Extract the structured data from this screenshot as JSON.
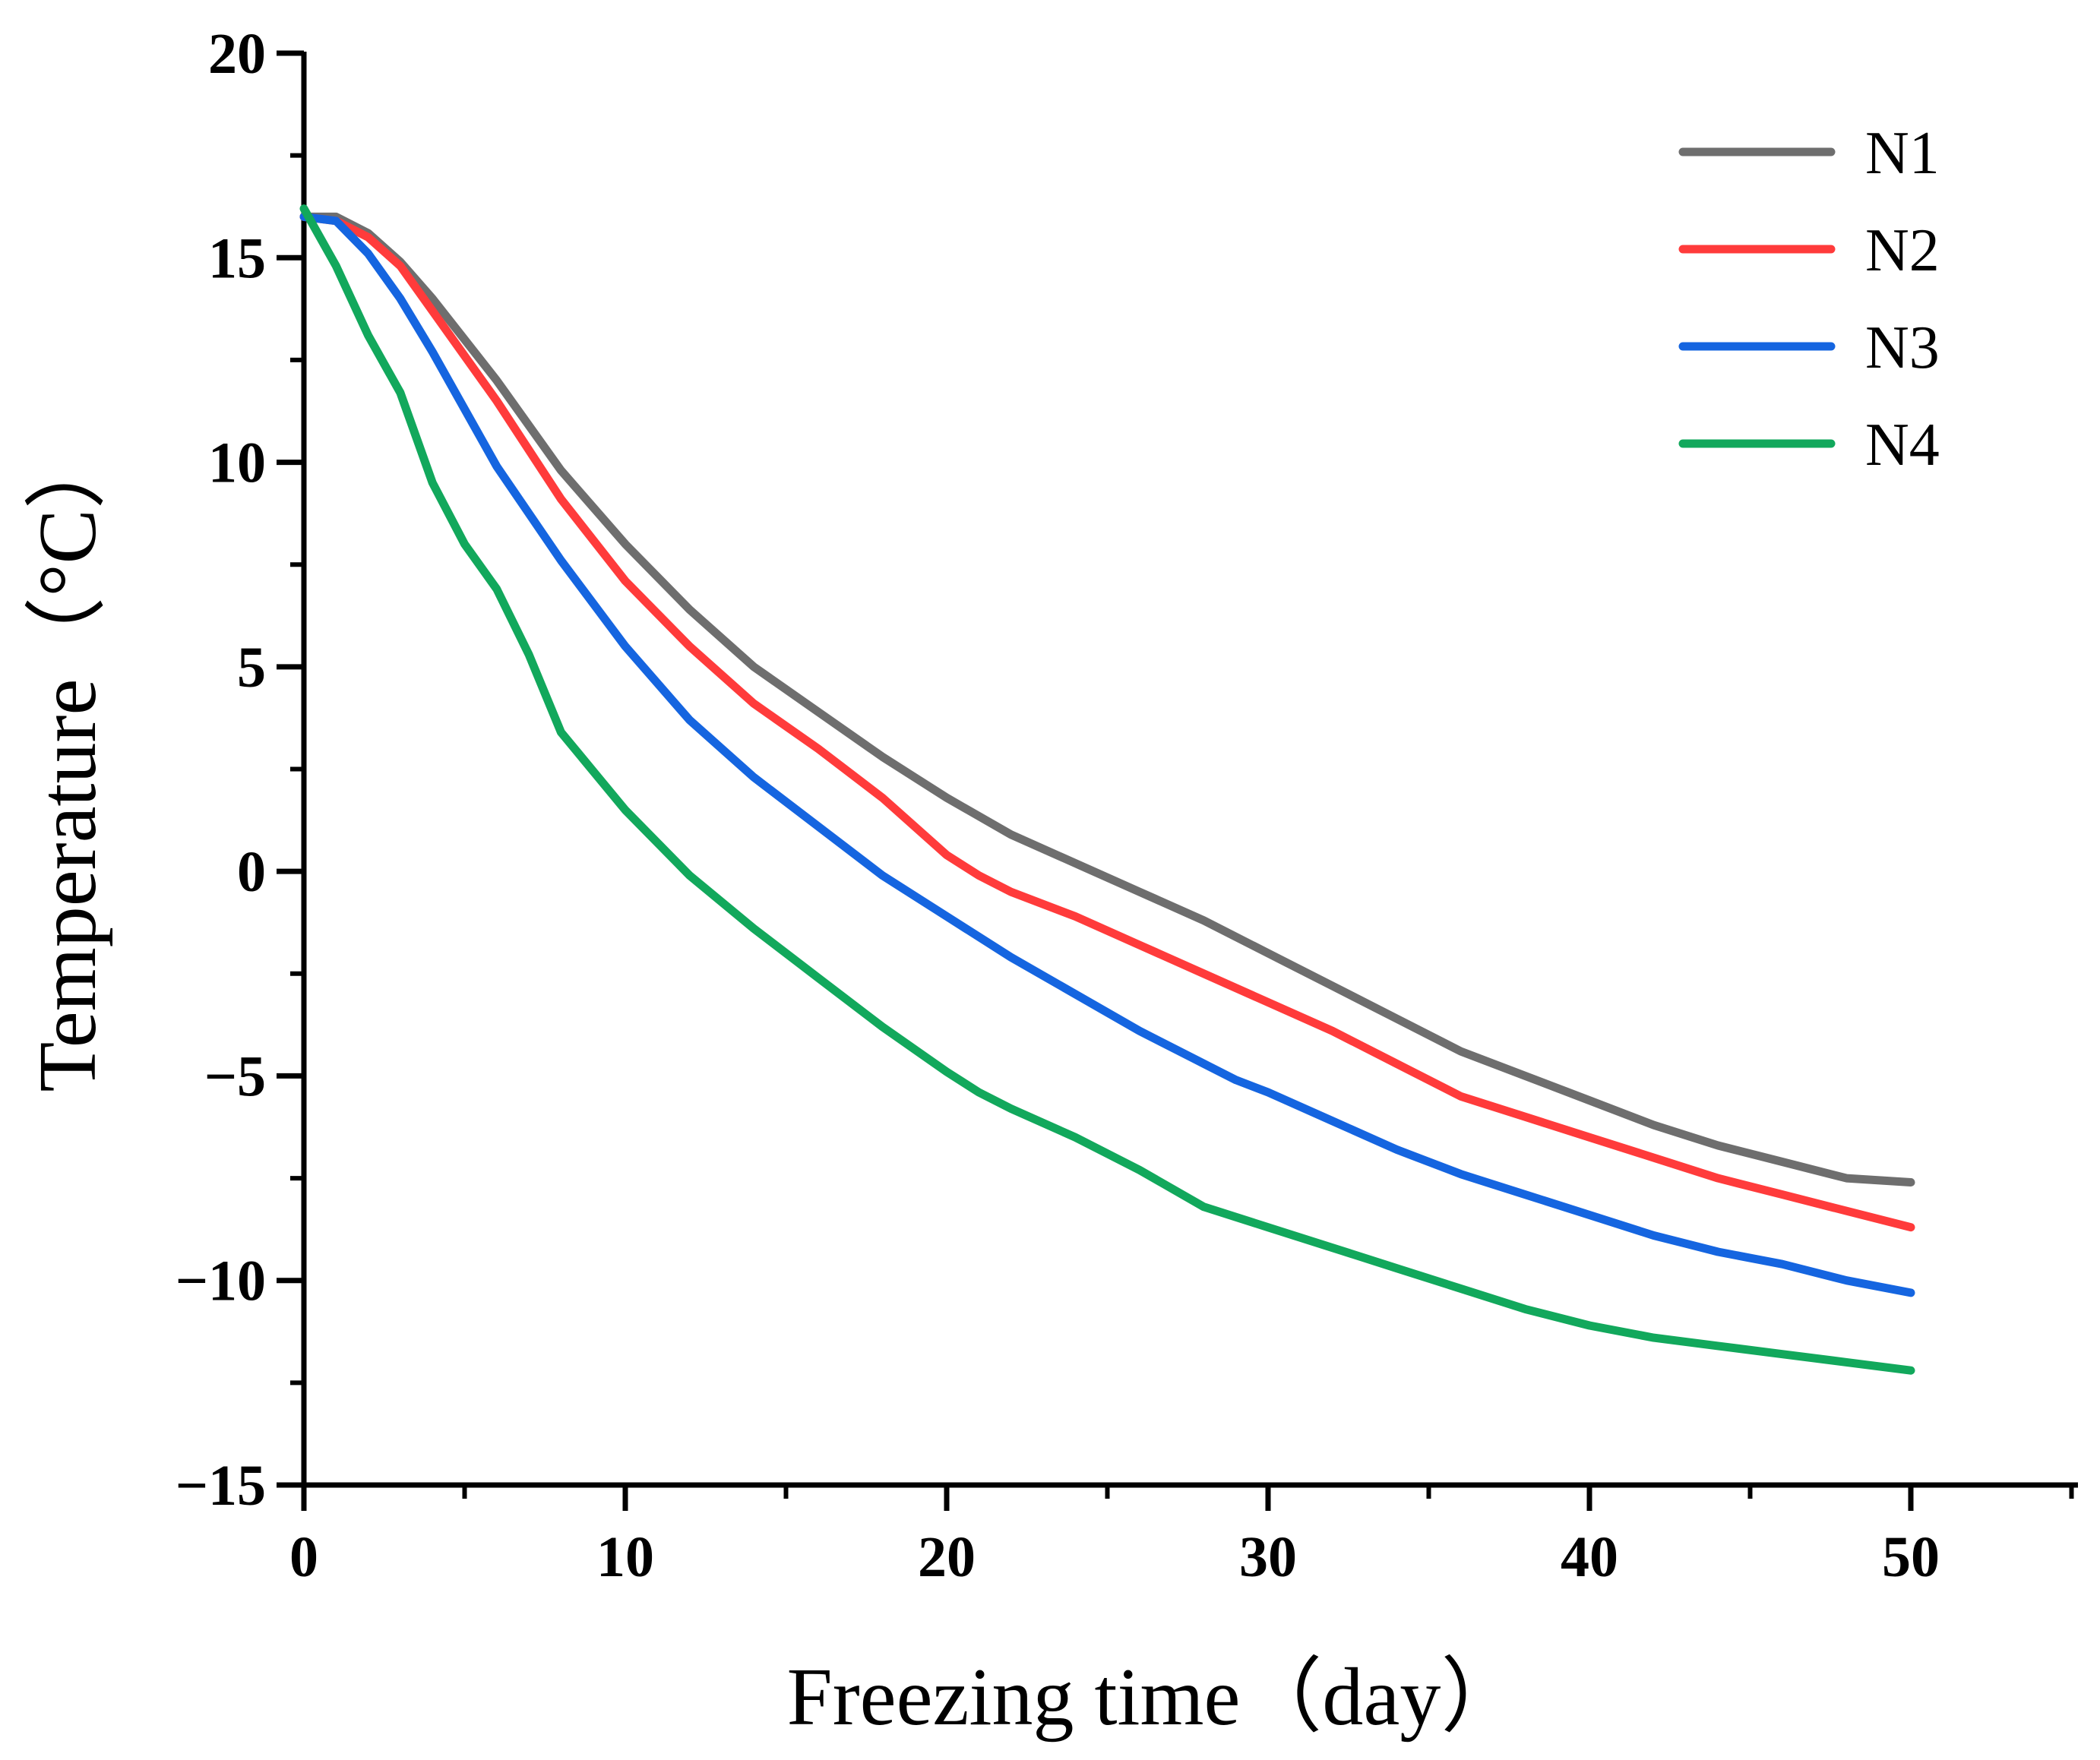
{
  "chart_data": {
    "type": "line",
    "title": "",
    "xlabel": "Freezing time（day）",
    "ylabel": "Temperature（°C）",
    "xlim": [
      0,
      55
    ],
    "ylim": [
      -15,
      20
    ],
    "xticks": [
      0,
      10,
      20,
      30,
      40,
      50
    ],
    "yticks": [
      20,
      15,
      10,
      5,
      0,
      -5,
      -10,
      -15
    ],
    "grid": false,
    "legend_position": "top-right",
    "series": [
      {
        "name": "N1",
        "color": "#6e6e6e",
        "x": [
          0,
          1,
          2,
          3,
          4,
          6,
          8,
          10,
          12,
          14,
          16,
          18,
          20,
          22,
          24,
          26,
          28,
          30,
          32,
          34,
          36,
          38,
          40,
          42,
          44,
          46,
          48,
          50
        ],
        "y": [
          16.0,
          16.0,
          15.6,
          14.9,
          14.0,
          12.0,
          9.8,
          8.0,
          6.4,
          5.0,
          3.9,
          2.8,
          1.8,
          0.9,
          0.2,
          -0.5,
          -1.2,
          -2.0,
          -2.8,
          -3.6,
          -4.4,
          -5.0,
          -5.6,
          -6.2,
          -6.7,
          -7.1,
          -7.5,
          -7.6
        ]
      },
      {
        "name": "N2",
        "color": "#ff3b3b",
        "x": [
          0,
          1,
          2,
          3,
          4,
          6,
          8,
          10,
          12,
          14,
          16,
          18,
          20,
          21,
          22,
          24,
          26,
          28,
          30,
          32,
          34,
          36,
          38,
          40,
          42,
          44,
          46,
          48,
          50
        ],
        "y": [
          16.0,
          15.9,
          15.5,
          14.8,
          13.7,
          11.5,
          9.1,
          7.1,
          5.5,
          4.1,
          3.0,
          1.8,
          0.4,
          -0.1,
          -0.5,
          -1.1,
          -1.8,
          -2.5,
          -3.2,
          -3.9,
          -4.7,
          -5.5,
          -6.0,
          -6.5,
          -7.0,
          -7.5,
          -7.9,
          -8.3,
          -8.7
        ]
      },
      {
        "name": "N3",
        "color": "#1565e0",
        "x": [
          0,
          1,
          2,
          3,
          4,
          6,
          8,
          10,
          12,
          14,
          16,
          18,
          20,
          22,
          24,
          26,
          28,
          29,
          30,
          32,
          34,
          36,
          38,
          40,
          42,
          43,
          44,
          46,
          48,
          50
        ],
        "y": [
          16.0,
          15.9,
          15.1,
          14.0,
          12.7,
          9.9,
          7.6,
          5.5,
          3.7,
          2.3,
          1.1,
          -0.1,
          -1.1,
          -2.1,
          -3.0,
          -3.9,
          -4.7,
          -5.1,
          -5.4,
          -6.1,
          -6.8,
          -7.4,
          -7.9,
          -8.4,
          -8.9,
          -9.1,
          -9.3,
          -9.6,
          -10.0,
          -10.3
        ]
      },
      {
        "name": "N4",
        "color": "#12a85c",
        "x": [
          0,
          1,
          2,
          3,
          4,
          5,
          6,
          7,
          8,
          10,
          12,
          14,
          16,
          18,
          20,
          21,
          22,
          24,
          26,
          28,
          30,
          32,
          34,
          36,
          38,
          40,
          42,
          44,
          46,
          48,
          50
        ],
        "y": [
          16.2,
          14.8,
          13.1,
          11.7,
          9.5,
          8.0,
          6.9,
          5.3,
          3.4,
          1.5,
          -0.1,
          -1.4,
          -2.6,
          -3.8,
          -4.9,
          -5.4,
          -5.8,
          -6.5,
          -7.3,
          -8.2,
          -8.7,
          -9.2,
          -9.7,
          -10.2,
          -10.7,
          -11.1,
          -11.4,
          -11.6,
          -11.8,
          -12.0,
          -12.2
        ]
      }
    ]
  }
}
